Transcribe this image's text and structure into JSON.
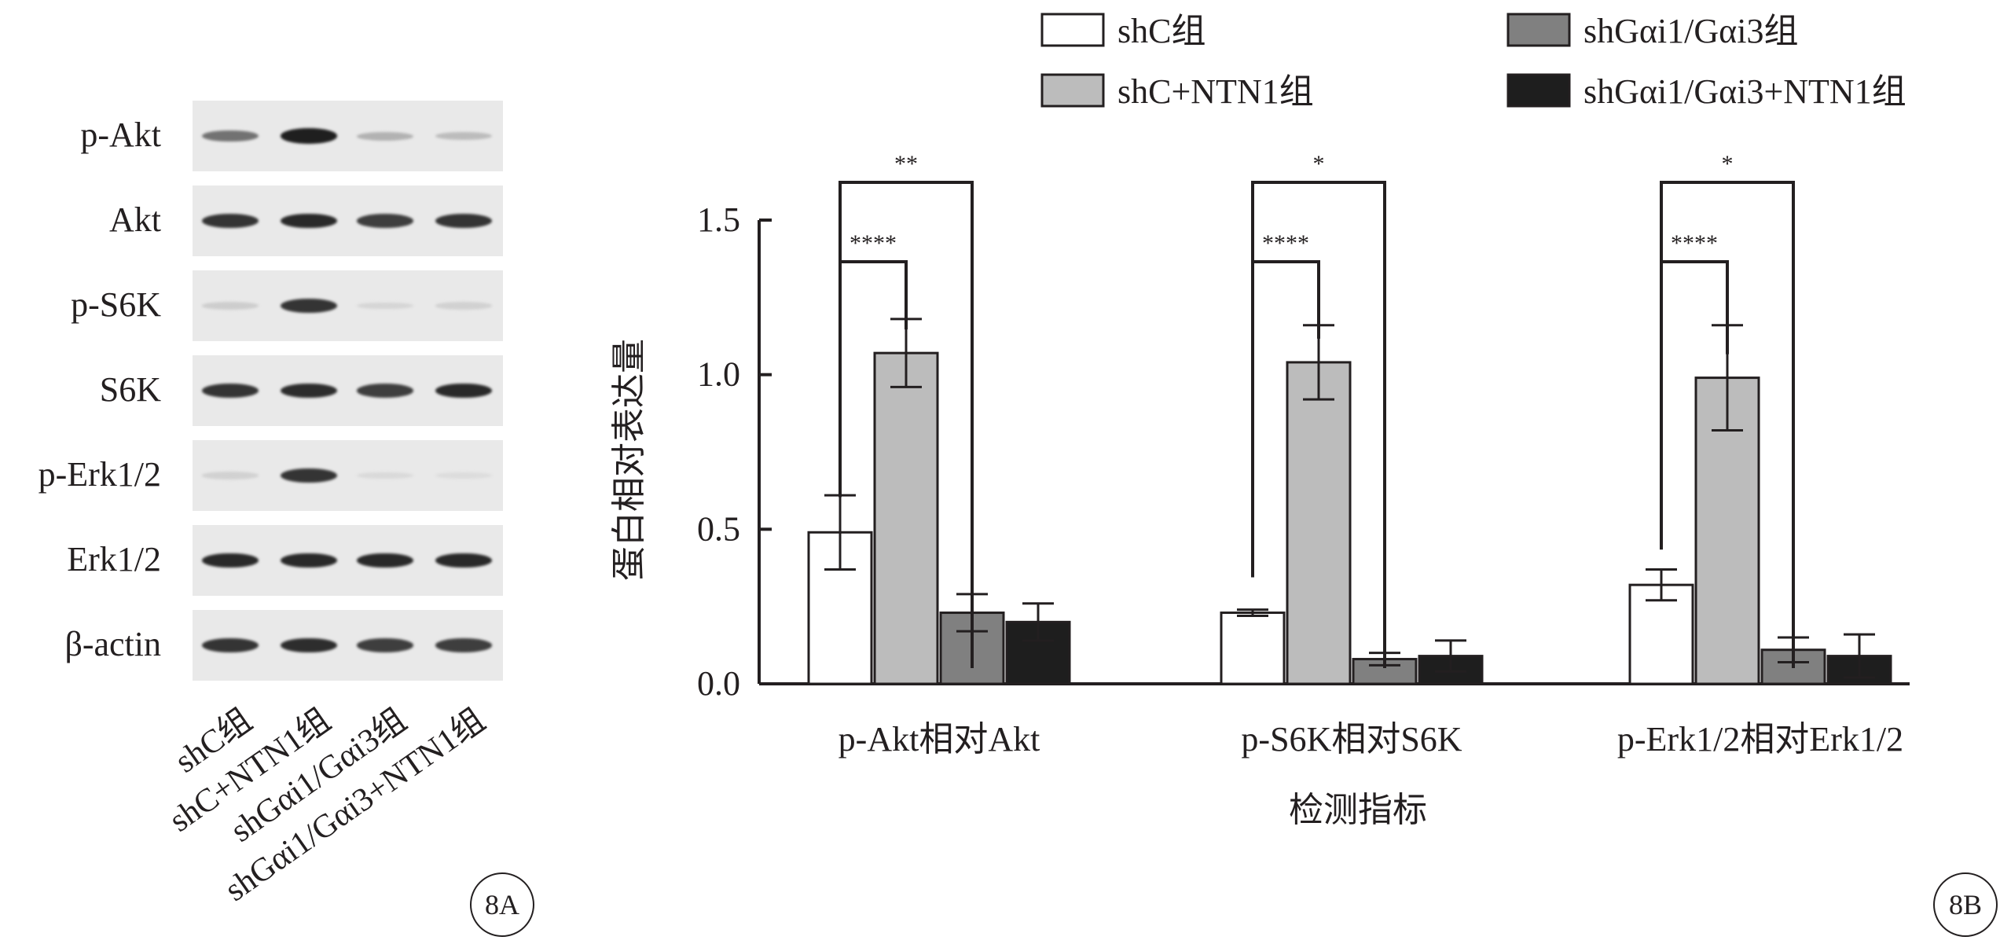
{
  "panel_a": {
    "tag": "8A",
    "rows": [
      "p-Akt",
      "Akt",
      "p-S6K",
      "S6K",
      "p-Erk1/2",
      "Erk1/2",
      "β-actin"
    ],
    "lanes": [
      "shC组",
      "shC+NTN1组",
      "shGαi1/Gαi3组",
      "shGαi1/Gαi3+NTN1组"
    ],
    "band_intensity": [
      [
        0.55,
        0.95,
        0.25,
        0.2
      ],
      [
        0.85,
        0.9,
        0.8,
        0.85
      ],
      [
        0.12,
        0.85,
        0.08,
        0.1
      ],
      [
        0.85,
        0.88,
        0.8,
        0.9
      ],
      [
        0.1,
        0.85,
        0.06,
        0.05
      ],
      [
        0.9,
        0.9,
        0.9,
        0.9
      ],
      [
        0.85,
        0.88,
        0.8,
        0.8
      ]
    ]
  },
  "panel_b_tag": "8B",
  "chart_data": {
    "type": "bar",
    "title": "",
    "xlabel": "检测指标",
    "ylabel": "蛋白相对表达量",
    "ylim": [
      0,
      1.5
    ],
    "yticks": [
      "0.0",
      "0.5",
      "1.0",
      "1.5"
    ],
    "categories": [
      "p-Akt相对Akt",
      "p-S6K相对S6K",
      "p-Erk1/2相对Erk1/2"
    ],
    "series": [
      {
        "name": "shC组",
        "color": "#ffffff",
        "values": [
          0.49,
          0.23,
          0.32
        ],
        "errors": [
          0.12,
          0.01,
          0.05
        ]
      },
      {
        "name": "shC+NTN1组",
        "color": "#bcbcbc",
        "values": [
          1.07,
          1.04,
          0.99
        ],
        "errors": [
          0.11,
          0.12,
          0.17
        ]
      },
      {
        "name": "shGαi1/Gαi3组",
        "color": "#808080",
        "values": [
          0.23,
          0.08,
          0.11
        ],
        "errors": [
          0.06,
          0.02,
          0.04
        ]
      },
      {
        "name": "shGαi1/Gαi3+NTN1组",
        "color": "#1e1e1e",
        "values": [
          0.2,
          0.09,
          0.09
        ],
        "errors": [
          0.06,
          0.05,
          0.07
        ]
      }
    ],
    "legend_placement": "top",
    "significance": [
      {
        "category": 0,
        "from": 0,
        "to": 1,
        "label": "****"
      },
      {
        "category": 0,
        "from": 0,
        "to": 2,
        "label": "**"
      },
      {
        "category": 1,
        "from": 0,
        "to": 1,
        "label": "****"
      },
      {
        "category": 1,
        "from": 0,
        "to": 2,
        "label": "*"
      },
      {
        "category": 2,
        "from": 0,
        "to": 1,
        "label": "****"
      },
      {
        "category": 2,
        "from": 0,
        "to": 2,
        "label": "*"
      }
    ]
  }
}
